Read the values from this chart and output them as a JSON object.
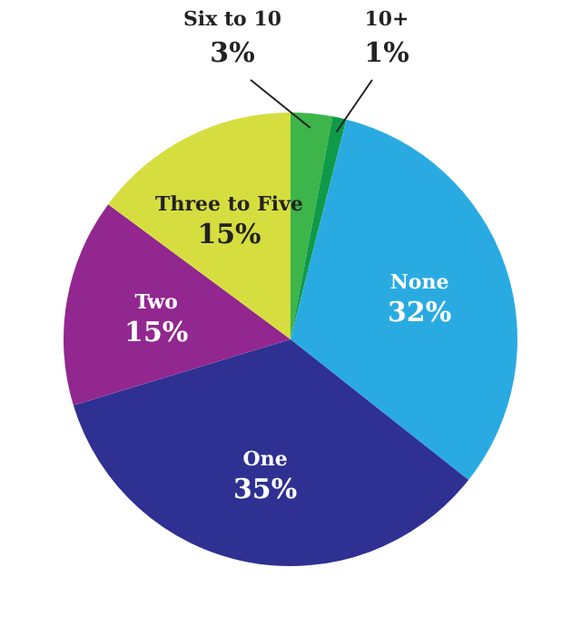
{
  "chart_data": {
    "type": "pie",
    "categories": [
      "Six to 10",
      "10+",
      "None",
      "One",
      "Two",
      "Three to Five"
    ],
    "values": [
      3,
      1,
      32,
      35,
      15,
      15
    ],
    "value_labels": [
      "3%",
      "1%",
      "32%",
      "35%",
      "15%",
      "15%"
    ],
    "colors": [
      "#3db54a",
      "#0f9a48",
      "#29abe2",
      "#2e3192",
      "#92278f",
      "#d6de3f"
    ]
  }
}
